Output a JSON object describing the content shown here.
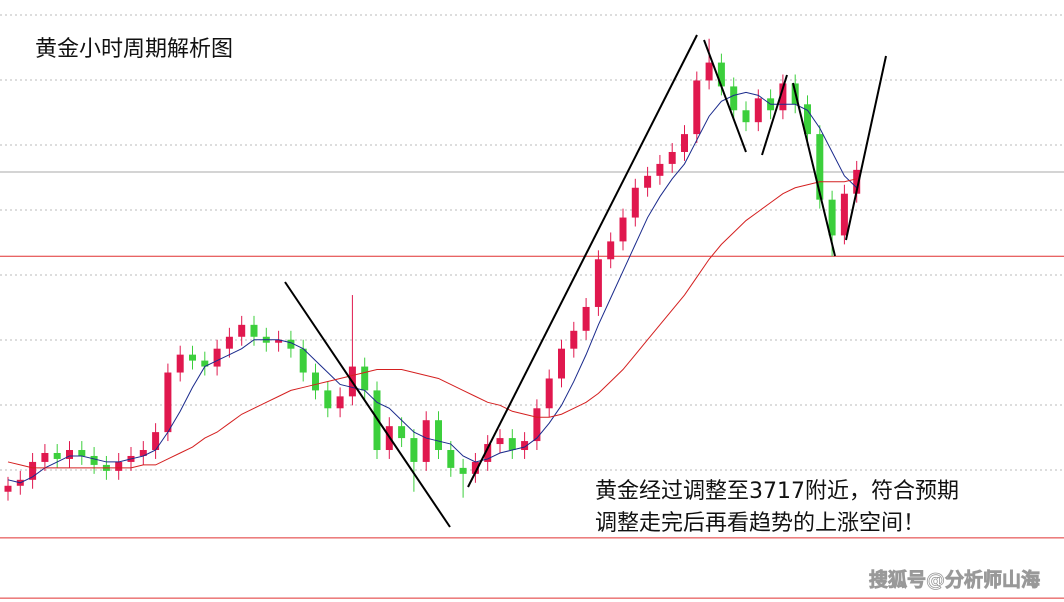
{
  "chart_data": {
    "type": "candlestick",
    "title": "黄金小时周期解析图",
    "annotation": [
      "黄金经过调整至3717附近，符合预期",
      "调整走完后再看趋势的上涨空间！"
    ],
    "watermark": "搜狐号@分析师山海",
    "ylim": [
      3601,
      3803
    ],
    "up_color": "#e0184e",
    "down_color": "#3ccf3c",
    "levels": [
      3717,
      3622.5,
      3602.3
    ],
    "level_color": "#e03030",
    "open": [
      3638,
      3640,
      3642,
      3648,
      3651,
      3649,
      3652,
      3650,
      3647,
      3645,
      3648,
      3650,
      3652,
      3658,
      3678,
      3684,
      3682,
      3680,
      3686,
      3690,
      3694,
      3690,
      3688,
      3689,
      3686,
      3678,
      3672,
      3666,
      3670,
      3680,
      3672,
      3652,
      3660,
      3656,
      3648,
      3662,
      3652,
      3646,
      3644,
      3648,
      3654,
      3656,
      3652,
      3655,
      3666,
      3676,
      3686,
      3692,
      3700,
      3716,
      3722,
      3730,
      3740,
      3744,
      3748,
      3752,
      3758,
      3776,
      3782,
      3774,
      3766,
      3762,
      3770,
      3766,
      3775,
      3768,
      3758,
      3736,
      3724,
      3738
    ],
    "high": [
      3643,
      3645,
      3651,
      3654,
      3654,
      3655,
      3655,
      3653,
      3650,
      3651,
      3653,
      3655,
      3661,
      3681,
      3687,
      3687,
      3685,
      3689,
      3693,
      3697,
      3697,
      3693,
      3692,
      3692,
      3689,
      3681,
      3675,
      3673,
      3704,
      3683,
      3675,
      3663,
      3663,
      3659,
      3665,
      3665,
      3655,
      3649,
      3651,
      3657,
      3659,
      3659,
      3658,
      3669,
      3679,
      3689,
      3695,
      3703,
      3719,
      3725,
      3733,
      3743,
      3747,
      3751,
      3755,
      3761,
      3779,
      3790,
      3785,
      3777,
      3769,
      3773,
      3773,
      3778,
      3778,
      3771,
      3761,
      3739,
      3741,
      3749
    ],
    "low": [
      3635,
      3637,
      3639,
      3645,
      3646,
      3646,
      3647,
      3644,
      3642,
      3642,
      3645,
      3647,
      3649,
      3655,
      3675,
      3679,
      3677,
      3677,
      3683,
      3687,
      3687,
      3685,
      3685,
      3683,
      3675,
      3669,
      3663,
      3663,
      3667,
      3669,
      3649,
      3649,
      3653,
      3638,
      3645,
      3649,
      3643,
      3636,
      3641,
      3645,
      3651,
      3649,
      3649,
      3652,
      3663,
      3673,
      3683,
      3689,
      3697,
      3713,
      3719,
      3727,
      3737,
      3741,
      3745,
      3749,
      3755,
      3773,
      3771,
      3763,
      3759,
      3759,
      3763,
      3763,
      3765,
      3755,
      3733,
      3717,
      3721,
      3735
    ],
    "close": [
      3640,
      3642,
      3648,
      3651,
      3649,
      3652,
      3650,
      3647,
      3645,
      3648,
      3650,
      3652,
      3658,
      3678,
      3684,
      3682,
      3680,
      3686,
      3690,
      3694,
      3690,
      3688,
      3689,
      3686,
      3678,
      3672,
      3666,
      3670,
      3680,
      3672,
      3652,
      3660,
      3656,
      3648,
      3662,
      3652,
      3646,
      3644,
      3648,
      3654,
      3656,
      3652,
      3655,
      3666,
      3676,
      3686,
      3692,
      3700,
      3716,
      3722,
      3730,
      3740,
      3744,
      3748,
      3752,
      3758,
      3776,
      3782,
      3774,
      3766,
      3762,
      3770,
      3766,
      3775,
      3768,
      3758,
      3736,
      3724,
      3738,
      3746
    ],
    "series": [
      {
        "color": "#1a2a8c",
        "values": [
          3642,
          3641,
          3643,
          3646,
          3648,
          3650,
          3650,
          3649,
          3648,
          3648,
          3649,
          3650,
          3652,
          3658,
          3665,
          3673,
          3680,
          3682,
          3684,
          3686,
          3689,
          3689,
          3689,
          3688,
          3686,
          3682,
          3678,
          3674,
          3673,
          3672,
          3668,
          3666,
          3662,
          3658,
          3656,
          3655,
          3654,
          3650,
          3648,
          3649,
          3651,
          3652,
          3653,
          3656,
          3661,
          3667,
          3675,
          3684,
          3694,
          3703,
          3712,
          3721,
          3730,
          3737,
          3743,
          3748,
          3756,
          3764,
          3769,
          3771,
          3772,
          3771,
          3768,
          3768,
          3768,
          3766,
          3760,
          3752,
          3744,
          3740
        ]
      },
      {
        "color": "#d42020",
        "values": [
          3648,
          3647,
          3646,
          3646,
          3646,
          3646,
          3646,
          3646,
          3646,
          3646,
          3646,
          3647,
          3647,
          3649,
          3651,
          3653,
          3656,
          3658,
          3661,
          3664,
          3666,
          3668,
          3670,
          3672,
          3673,
          3674,
          3675,
          3676,
          3677,
          3678,
          3679,
          3679,
          3679,
          3678,
          3677,
          3676,
          3674,
          3672,
          3670,
          3668,
          3667,
          3665,
          3664,
          3663,
          3663,
          3664,
          3666,
          3668,
          3671,
          3675,
          3679,
          3684,
          3689,
          3694,
          3699,
          3704,
          3710,
          3716,
          3721,
          3725,
          3729,
          3732,
          3735,
          3738,
          3740,
          3741,
          3742,
          3742,
          3742,
          3743
        ]
      }
    ]
  }
}
